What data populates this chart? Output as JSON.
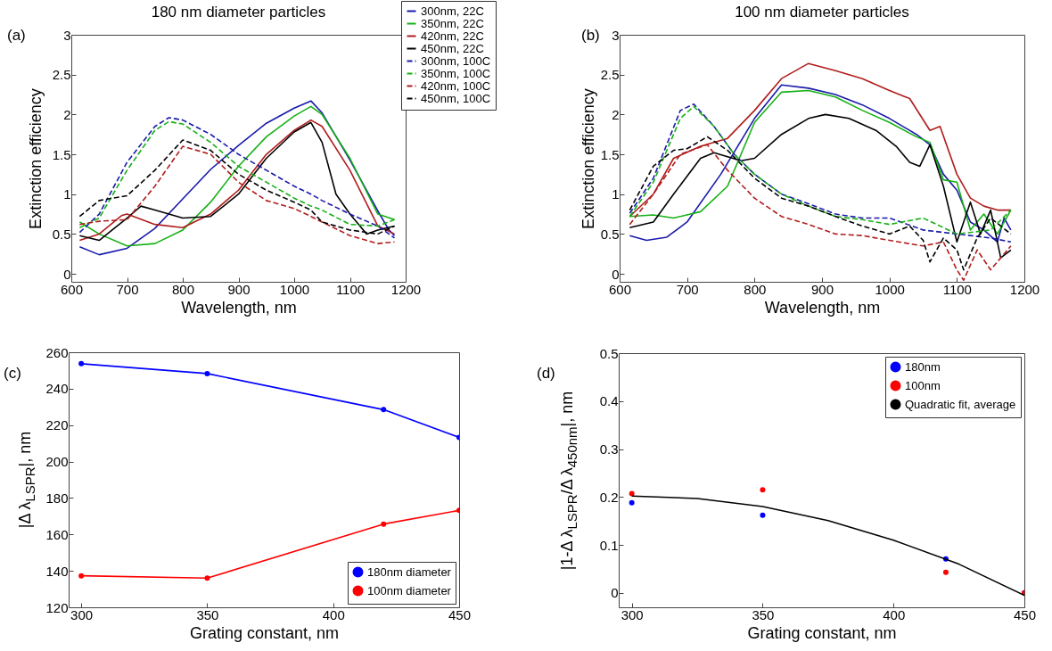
{
  "chart_data": [
    {
      "type": "line",
      "title": "180 nm diameter particles",
      "xlabel": "Wavelength, nm",
      "ylabel": "Extinction efficiency",
      "annotations": [
        "(a)"
      ],
      "xlim": [
        600,
        1200
      ],
      "xticks": [
        600,
        700,
        800,
        900,
        1000,
        1100,
        1200
      ],
      "ylim": [
        -0.1,
        3
      ],
      "yticks": [
        0,
        0.5,
        1,
        1.5,
        2,
        2.5,
        3
      ],
      "legend": "top right",
      "series": [
        {
          "name": "300nm, 22C",
          "color": "#1a1aaa",
          "line_style": "solid",
          "x": [
            615,
            650,
            700,
            750,
            800,
            850,
            900,
            950,
            1000,
            1030,
            1050,
            1100,
            1150,
            1170,
            1180
          ],
          "values": [
            0.34,
            0.24,
            0.32,
            0.57,
            0.94,
            1.31,
            1.61,
            1.89,
            2.08,
            2.17,
            2.02,
            1.43,
            0.79,
            0.55,
            0.48
          ]
        },
        {
          "name": "350nm, 22C",
          "color": "#16b016",
          "line_style": "solid",
          "x": [
            615,
            650,
            700,
            750,
            800,
            850,
            900,
            950,
            1000,
            1030,
            1050,
            1100,
            1150,
            1180
          ],
          "values": [
            0.65,
            0.5,
            0.35,
            0.38,
            0.55,
            0.9,
            1.35,
            1.72,
            1.98,
            2.1,
            2.0,
            1.45,
            0.75,
            0.68
          ]
        },
        {
          "name": "420nm, 22C",
          "color": "#b01c1c",
          "line_style": "solid",
          "x": [
            615,
            650,
            690,
            700,
            750,
            800,
            850,
            900,
            950,
            1000,
            1030,
            1050,
            1100,
            1150,
            1180
          ],
          "values": [
            0.42,
            0.5,
            0.73,
            0.75,
            0.62,
            0.58,
            0.75,
            1.05,
            1.5,
            1.8,
            1.93,
            1.85,
            1.3,
            0.6,
            0.5
          ]
        },
        {
          "name": "450nm, 22C",
          "color": "#000000",
          "line_style": "solid",
          "x": [
            615,
            650,
            700,
            725,
            750,
            800,
            850,
            900,
            950,
            1000,
            1030,
            1050,
            1075,
            1100,
            1130,
            1150,
            1180
          ],
          "values": [
            0.48,
            0.42,
            0.7,
            0.85,
            0.8,
            0.7,
            0.72,
            1.0,
            1.45,
            1.78,
            1.9,
            1.65,
            1.0,
            0.75,
            0.5,
            0.55,
            0.6
          ]
        },
        {
          "name": "300nm, 100C",
          "color": "#1a1aaa",
          "line_style": "dashed",
          "x": [
            615,
            650,
            700,
            750,
            775,
            800,
            850,
            900,
            950,
            1000,
            1030,
            1050,
            1100,
            1150,
            1180
          ],
          "values": [
            0.52,
            0.75,
            1.4,
            1.85,
            1.96,
            1.93,
            1.75,
            1.5,
            1.3,
            1.1,
            1.0,
            0.92,
            0.75,
            0.6,
            0.45
          ]
        },
        {
          "name": "350nm, 100C",
          "color": "#16b016",
          "line_style": "dashed",
          "x": [
            615,
            650,
            700,
            750,
            775,
            800,
            850,
            900,
            950,
            1000,
            1030,
            1050,
            1100,
            1150,
            1180
          ],
          "values": [
            0.58,
            0.7,
            1.3,
            1.8,
            1.91,
            1.88,
            1.65,
            1.35,
            1.15,
            0.95,
            0.85,
            0.8,
            0.62,
            0.6,
            0.68
          ]
        },
        {
          "name": "420nm, 100C",
          "color": "#b01c1c",
          "line_style": "dashed",
          "x": [
            615,
            650,
            700,
            750,
            800,
            850,
            900,
            950,
            1000,
            1030,
            1050,
            1100,
            1150,
            1180
          ],
          "values": [
            0.62,
            0.66,
            0.68,
            1.1,
            1.6,
            1.5,
            1.15,
            0.92,
            0.82,
            0.72,
            0.65,
            0.48,
            0.38,
            0.4
          ]
        },
        {
          "name": "450nm, 100C",
          "color": "#000000",
          "line_style": "dashed",
          "x": [
            615,
            650,
            700,
            750,
            800,
            850,
            900,
            950,
            1000,
            1030,
            1050,
            1100,
            1150,
            1180
          ],
          "values": [
            0.72,
            0.92,
            0.98,
            1.3,
            1.68,
            1.55,
            1.25,
            1.05,
            0.9,
            0.8,
            0.65,
            0.55,
            0.5,
            0.6
          ]
        }
      ]
    },
    {
      "type": "line",
      "title": "100 nm diameter particles",
      "xlabel": "Wavelength, nm",
      "ylabel": "Extinction efficiency",
      "annotations": [
        "(b)"
      ],
      "xlim": [
        600,
        1200
      ],
      "xticks": [
        600,
        700,
        800,
        900,
        1000,
        1100,
        1200
      ],
      "ylim": [
        -0.1,
        3
      ],
      "yticks": [
        0,
        0.5,
        1,
        1.5,
        2,
        2.5,
        3
      ],
      "series": [
        {
          "color": "#1a1aaa",
          "line_style": "solid",
          "x": [
            615,
            640,
            670,
            700,
            750,
            800,
            840,
            880,
            920,
            960,
            1000,
            1040,
            1060,
            1080,
            1100,
            1120,
            1140,
            1160,
            1170,
            1180
          ],
          "values": [
            0.48,
            0.42,
            0.46,
            0.65,
            1.25,
            1.95,
            2.37,
            2.33,
            2.25,
            2.12,
            1.95,
            1.75,
            1.62,
            1.25,
            1.05,
            0.65,
            0.55,
            0.4,
            0.7,
            0.55
          ]
        },
        {
          "color": "#16b016",
          "line_style": "solid",
          "x": [
            615,
            650,
            680,
            720,
            760,
            800,
            840,
            880,
            920,
            960,
            1000,
            1040,
            1060,
            1080,
            1100,
            1120,
            1140,
            1160,
            1180
          ],
          "values": [
            0.72,
            0.74,
            0.7,
            0.78,
            1.1,
            1.9,
            2.28,
            2.3,
            2.22,
            2.05,
            1.9,
            1.72,
            1.65,
            1.18,
            1.15,
            0.55,
            0.75,
            0.5,
            0.8
          ]
        },
        {
          "color": "#b01c1c",
          "line_style": "solid",
          "x": [
            615,
            650,
            680,
            720,
            760,
            800,
            840,
            880,
            920,
            960,
            1000,
            1030,
            1060,
            1075,
            1100,
            1120,
            1140,
            1160,
            1180
          ],
          "values": [
            0.72,
            1.0,
            1.45,
            1.6,
            1.7,
            2.05,
            2.45,
            2.64,
            2.55,
            2.45,
            2.3,
            2.2,
            1.8,
            1.85,
            1.25,
            0.95,
            0.85,
            0.8,
            0.8
          ]
        },
        {
          "color": "#000000",
          "line_style": "solid",
          "x": [
            615,
            650,
            680,
            720,
            740,
            780,
            800,
            840,
            880,
            905,
            940,
            980,
            1010,
            1030,
            1045,
            1060,
            1080,
            1100,
            1120,
            1135,
            1150,
            1165,
            1180
          ],
          "values": [
            0.58,
            0.65,
            1.0,
            1.45,
            1.52,
            1.42,
            1.45,
            1.75,
            1.95,
            2.0,
            1.95,
            1.8,
            1.6,
            1.4,
            1.35,
            1.62,
            1.1,
            0.4,
            0.9,
            0.5,
            0.8,
            0.2,
            0.3
          ]
        },
        {
          "color": "#1a1aaa",
          "line_style": "dashed",
          "x": [
            615,
            650,
            690,
            710,
            740,
            770,
            800,
            840,
            880,
            920,
            960,
            1000,
            1050,
            1100,
            1150,
            1180
          ],
          "values": [
            0.76,
            1.2,
            2.05,
            2.13,
            1.85,
            1.5,
            1.25,
            1.0,
            0.88,
            0.75,
            0.7,
            0.7,
            0.55,
            0.5,
            0.45,
            0.4
          ]
        },
        {
          "color": "#16b016",
          "line_style": "dashed",
          "x": [
            615,
            650,
            690,
            710,
            740,
            770,
            800,
            840,
            880,
            920,
            960,
            1000,
            1050,
            1100,
            1150,
            1180
          ],
          "values": [
            0.72,
            1.15,
            1.95,
            2.1,
            1.85,
            1.5,
            1.25,
            1.0,
            0.85,
            0.72,
            0.68,
            0.62,
            0.7,
            0.5,
            0.55,
            0.8
          ]
        },
        {
          "color": "#b01c1c",
          "line_style": "dashed",
          "x": [
            615,
            650,
            690,
            730,
            760,
            800,
            840,
            880,
            920,
            960,
            1000,
            1050,
            1080,
            1100,
            1110,
            1130,
            1150,
            1160,
            1180
          ],
          "values": [
            0.62,
            1.0,
            1.5,
            1.62,
            1.3,
            0.95,
            0.72,
            0.62,
            0.5,
            0.48,
            0.42,
            0.35,
            0.4,
            0.05,
            -0.08,
            0.3,
            0.05,
            0.15,
            0.35
          ]
        },
        {
          "color": "#000000",
          "line_style": "dashed",
          "x": [
            615,
            650,
            680,
            700,
            730,
            760,
            800,
            840,
            880,
            920,
            960,
            1000,
            1030,
            1050,
            1060,
            1080,
            1100,
            1110,
            1130,
            1150,
            1180
          ],
          "values": [
            0.8,
            1.35,
            1.55,
            1.57,
            1.72,
            1.55,
            1.2,
            0.95,
            0.85,
            0.72,
            0.6,
            0.5,
            0.6,
            0.42,
            0.15,
            0.45,
            0.3,
            0.05,
            0.45,
            0.7,
            0.5
          ]
        }
      ]
    },
    {
      "type": "line",
      "xlabel": "Grating constant, nm",
      "ylabel": "|Δ λ$_{LSPR}$|, nm",
      "annotations": [
        "(c)"
      ],
      "xlim": [
        295,
        450
      ],
      "xticks": [
        300,
        350,
        400,
        450
      ],
      "ylim": [
        120,
        260
      ],
      "yticks": [
        120,
        140,
        160,
        180,
        200,
        220,
        240,
        260
      ],
      "legend": "bottom right",
      "marker": "circle",
      "x": [
        300,
        350,
        420,
        450
      ],
      "series": [
        {
          "name": "180nm diameter",
          "color": "#0000ff",
          "values": [
            253.7,
            248.3,
            228.5,
            213.3
          ]
        },
        {
          "name": "100nm diameter",
          "color": "#ff0000",
          "values": [
            137.3,
            136.0,
            165.7,
            173.2
          ]
        }
      ]
    },
    {
      "type": "scatter",
      "xlabel": "Grating constant, nm",
      "ylabel": "|1-Δ λ$_{LSPR}$/Δ λ$_{450nm}$|, nm",
      "annotations": [
        "(d)"
      ],
      "xlim": [
        295,
        450
      ],
      "xticks": [
        300,
        350,
        400,
        450
      ],
      "ylim": [
        -0.03,
        0.5
      ],
      "yticks": [
        0,
        0.1,
        0.2,
        0.3,
        0.4,
        0.5
      ],
      "legend": "top right",
      "marker": "circle",
      "x": [
        300,
        350,
        420,
        450
      ],
      "series": [
        {
          "name": "180nm",
          "color": "#0000ff",
          "values": [
            0.188,
            0.162,
            0.071,
            0
          ]
        },
        {
          "name": "100nm",
          "color": "#ff0000",
          "values": [
            0.207,
            0.215,
            0.043,
            0
          ]
        },
        {
          "name": "Quadratic fit, average",
          "type": "line",
          "marker": "none",
          "color": "#000000",
          "x": [
            300,
            325,
            350,
            375,
            400,
            425,
            450
          ],
          "values": [
            0.202,
            0.197,
            0.18,
            0.151,
            0.11,
            0.06,
            -0.005
          ]
        }
      ]
    }
  ]
}
